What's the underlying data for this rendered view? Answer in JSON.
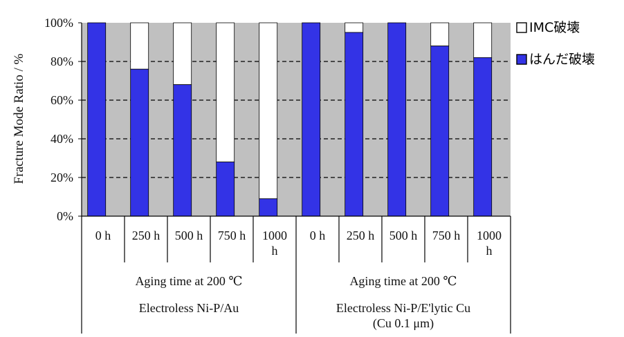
{
  "chart_data": {
    "type": "bar",
    "stacked": true,
    "ylabel": "Fracture Mode Ratio / %",
    "ylim": [
      0,
      100
    ],
    "yticks": [
      "0%",
      "20%",
      "40%",
      "60%",
      "80%",
      "100%"
    ],
    "grid": "dashed-horizontal",
    "legend_position": "right",
    "groups": [
      {
        "aging_label": "Aging time at 200 ℃",
        "sample_lines": [
          "Electroless Ni-P/Au"
        ],
        "categories": [
          [
            "0 h"
          ],
          [
            "250 h"
          ],
          [
            "500 h"
          ],
          [
            "750 h"
          ],
          [
            "1000",
            "h"
          ]
        ],
        "solder": [
          100,
          76,
          68,
          28,
          9
        ],
        "imc": [
          0,
          24,
          32,
          72,
          91
        ]
      },
      {
        "aging_label": "Aging time at 200 ℃",
        "sample_lines": [
          "Electroless Ni-P/E'lytic Cu",
          "(Cu 0.1 μm)"
        ],
        "categories": [
          [
            "0 h"
          ],
          [
            "250 h"
          ],
          [
            "500 h"
          ],
          [
            "750 h"
          ],
          [
            "1000",
            "h"
          ]
        ],
        "solder": [
          100,
          95,
          100,
          88,
          82
        ],
        "imc": [
          0,
          5,
          0,
          12,
          18
        ]
      }
    ],
    "series": [
      {
        "name": "IMC破壊",
        "color": "#ffffff"
      },
      {
        "name": "はんだ破壊",
        "color": "#3333e6"
      }
    ],
    "background_color": "#c0c0c0"
  }
}
